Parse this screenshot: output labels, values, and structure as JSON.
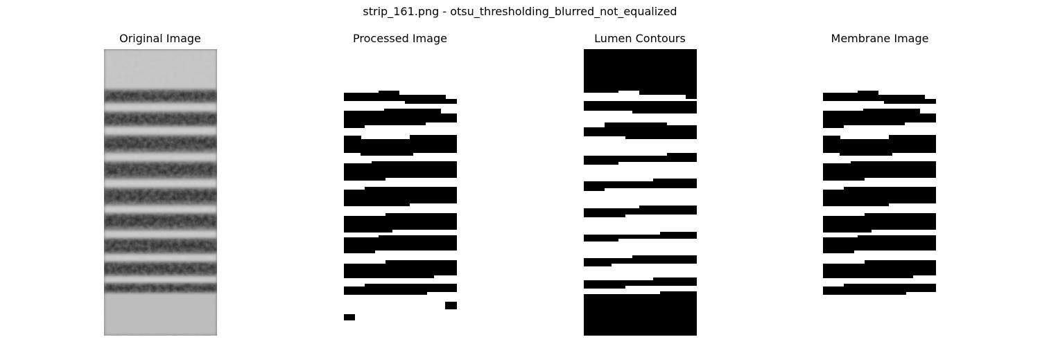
{
  "figure": {
    "title": "strip_161.png - otsu_thresholding_blurred_not_equalized"
  },
  "panels": [
    {
      "title": "Original Image"
    },
    {
      "title": "Processed Image"
    },
    {
      "title": "Lumen Contours"
    },
    {
      "title": "Membrane Image"
    }
  ],
  "colors": {
    "background": "#ffffff",
    "foreground": "#000000"
  }
}
